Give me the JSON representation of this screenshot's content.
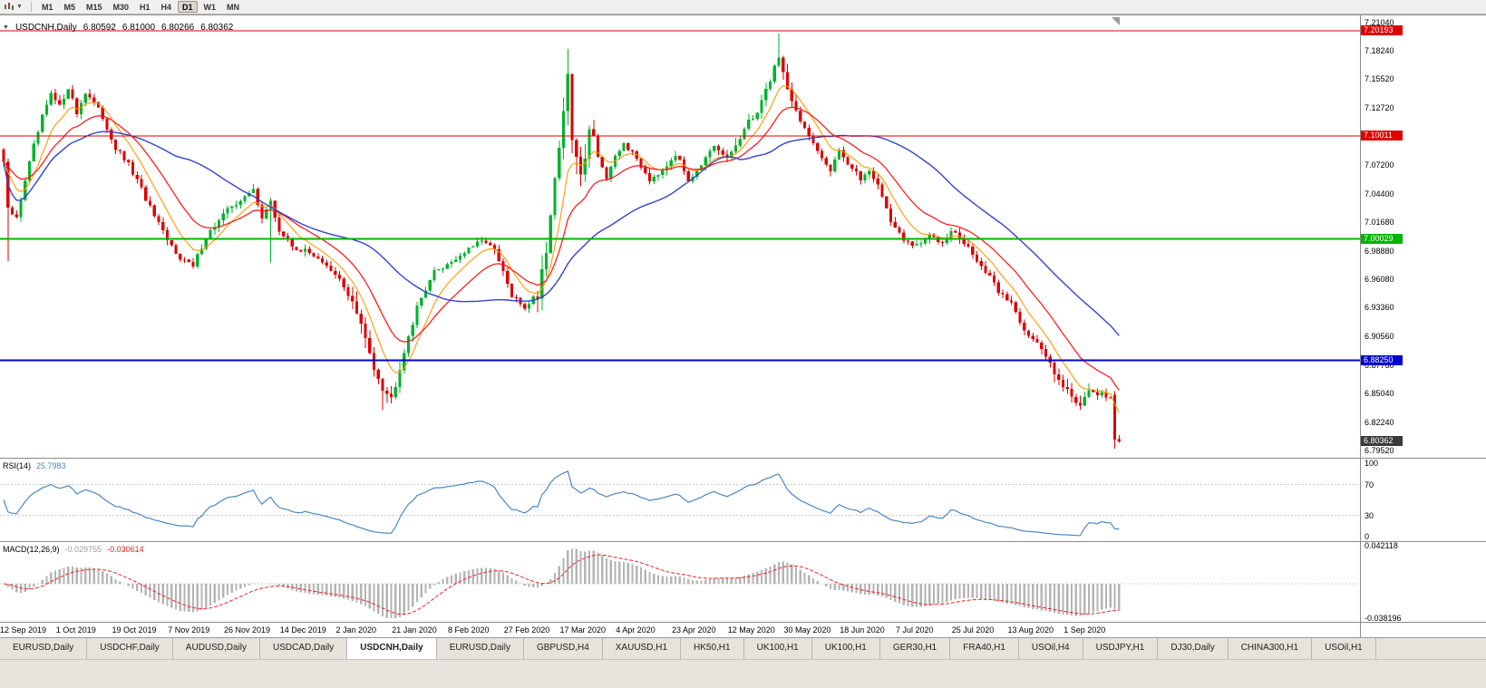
{
  "toolbar": {
    "timeframes": [
      "M1",
      "M5",
      "M15",
      "M30",
      "H1",
      "H4",
      "D1",
      "W1",
      "MN"
    ],
    "active_timeframe": "D1"
  },
  "chart": {
    "title": "USDCNH,Daily",
    "ohlc": {
      "open": "6.80592",
      "high": "6.81000",
      "low": "6.80266",
      "close": "6.80362"
    },
    "axis_labels": [
      "7.21040",
      "7.18240",
      "7.15520",
      "7.12720",
      "7.07200",
      "7.04400",
      "7.01680",
      "6.98880",
      "6.96080",
      "6.93360",
      "6.90560",
      "6.87760",
      "6.85040",
      "6.82240",
      "6.79520"
    ],
    "levels": [
      {
        "label": "7.20193",
        "price": 7.20193,
        "color": "#dd0000",
        "line_width": 1
      },
      {
        "label": "7.10011",
        "price": 7.10011,
        "color": "#dd0000",
        "line_width": 1
      },
      {
        "label": "7.00029",
        "price": 7.00029,
        "color": "#00b400",
        "line_width": 2
      },
      {
        "label": "6.88250",
        "price": 6.8825,
        "color": "#0000cc",
        "line_width": 2
      }
    ],
    "current_price": {
      "label": "6.80362",
      "price": 6.80362,
      "color": "#3a3a3a"
    }
  },
  "rsi": {
    "label": "RSI(14)",
    "value": "25.7983",
    "axis": [
      "100",
      "70",
      "30",
      "0"
    ],
    "levels": [
      70,
      30
    ]
  },
  "macd": {
    "label": "MACD(12,26,9)",
    "value_main": "-0.029755",
    "value_signal": "-0.030614",
    "axis_max": "0.042118",
    "axis_min": "-0.038196"
  },
  "dates": [
    "12 Sep 2019",
    "1 Oct 2019",
    "19 Oct 2019",
    "7 Nov 2019",
    "26 Nov 2019",
    "14 Dec 2019",
    "2 Jan 2020",
    "21 Jan 2020",
    "8 Feb 2020",
    "27 Feb 2020",
    "17 Mar 2020",
    "4 Apr 2020",
    "23 Apr 2020",
    "12 May 2020",
    "30 May 2020",
    "18 Jun 2020",
    "7 Jul 2020",
    "25 Jul 2020",
    "13 Aug 2020",
    "1 Sep 2020"
  ],
  "tabs": {
    "items": [
      "EURUSD,Daily",
      "USDCHF,Daily",
      "AUDUSD,Daily",
      "USDCAD,Daily",
      "USDCNH,Daily",
      "EURUSD,Daily",
      "GBPUSD,H4",
      "XAUUSD,H1",
      "HK50,H1",
      "UK100,H1",
      "UK100,H1",
      "GER30,H1",
      "FRA40,H1",
      "USOil,H4",
      "USDJPY,H1",
      "DJ30,Daily",
      "CHINA300,H1",
      "USOil,H1"
    ],
    "active_index": 4
  },
  "chart_data": {
    "type": "candlestick",
    "symbol": "USDCNH",
    "timeframe": "Daily",
    "candles": 260,
    "price_range": [
      6.788,
      7.217
    ],
    "base_volatility": 0.0062,
    "anchors": [
      [
        0,
        7.075
      ],
      [
        1,
        7.028
      ],
      [
        3,
        7.02
      ],
      [
        5,
        7.058
      ],
      [
        7,
        7.09
      ],
      [
        9,
        7.118
      ],
      [
        11,
        7.14
      ],
      [
        13,
        7.128
      ],
      [
        15,
        7.148
      ],
      [
        17,
        7.122
      ],
      [
        19,
        7.143
      ],
      [
        21,
        7.132
      ],
      [
        23,
        7.118
      ],
      [
        26,
        7.088
      ],
      [
        29,
        7.072
      ],
      [
        32,
        7.048
      ],
      [
        35,
        7.022
      ],
      [
        38,
        6.998
      ],
      [
        41,
        6.983
      ],
      [
        44,
        6.973
      ],
      [
        47,
        7.003
      ],
      [
        50,
        7.018
      ],
      [
        53,
        7.033
      ],
      [
        56,
        7.04
      ],
      [
        58,
        7.048
      ],
      [
        60,
        7.022
      ],
      [
        62,
        7.035
      ],
      [
        64,
        7.008
      ],
      [
        67,
        6.993
      ],
      [
        70,
        6.988
      ],
      [
        73,
        6.983
      ],
      [
        76,
        6.968
      ],
      [
        78,
        6.96
      ],
      [
        80,
        6.948
      ],
      [
        82,
        6.928
      ],
      [
        84,
        6.902
      ],
      [
        86,
        6.878
      ],
      [
        88,
        6.858
      ],
      [
        90,
        6.845
      ],
      [
        92,
        6.878
      ],
      [
        94,
        6.908
      ],
      [
        96,
        6.933
      ],
      [
        98,
        6.953
      ],
      [
        100,
        6.968
      ],
      [
        103,
        6.976
      ],
      [
        106,
        6.984
      ],
      [
        109,
        6.993
      ],
      [
        112,
        6.999
      ],
      [
        114,
        6.988
      ],
      [
        116,
        6.968
      ],
      [
        118,
        6.944
      ],
      [
        121,
        6.934
      ],
      [
        124,
        6.948
      ],
      [
        126,
        6.993
      ],
      [
        128,
        7.058
      ],
      [
        130,
        7.128
      ],
      [
        131,
        7.152
      ],
      [
        132,
        7.098
      ],
      [
        134,
        7.058
      ],
      [
        136,
        7.112
      ],
      [
        138,
        7.082
      ],
      [
        140,
        7.058
      ],
      [
        142,
        7.078
      ],
      [
        144,
        7.093
      ],
      [
        147,
        7.078
      ],
      [
        150,
        7.058
      ],
      [
        153,
        7.068
      ],
      [
        156,
        7.083
      ],
      [
        159,
        7.058
      ],
      [
        162,
        7.073
      ],
      [
        165,
        7.088
      ],
      [
        168,
        7.078
      ],
      [
        171,
        7.098
      ],
      [
        174,
        7.118
      ],
      [
        177,
        7.143
      ],
      [
        179,
        7.168
      ],
      [
        180,
        7.176
      ],
      [
        182,
        7.148
      ],
      [
        184,
        7.123
      ],
      [
        186,
        7.108
      ],
      [
        189,
        7.083
      ],
      [
        192,
        7.068
      ],
      [
        194,
        7.088
      ],
      [
        196,
        7.073
      ],
      [
        199,
        7.058
      ],
      [
        201,
        7.068
      ],
      [
        203,
        7.053
      ],
      [
        206,
        7.018
      ],
      [
        209,
        6.998
      ],
      [
        212,
        6.993
      ],
      [
        215,
        7.003
      ],
      [
        218,
        6.998
      ],
      [
        220,
        7.01
      ],
      [
        222,
        7.0
      ],
      [
        225,
        6.986
      ],
      [
        228,
        6.968
      ],
      [
        231,
        6.95
      ],
      [
        234,
        6.938
      ],
      [
        237,
        6.913
      ],
      [
        240,
        6.898
      ],
      [
        243,
        6.88
      ],
      [
        246,
        6.86
      ],
      [
        248,
        6.846
      ],
      [
        250,
        6.841
      ],
      [
        252,
        6.857
      ],
      [
        254,
        6.845
      ],
      [
        256,
        6.849
      ],
      [
        257,
        6.845
      ],
      [
        258,
        6.806
      ],
      [
        259,
        6.80362
      ]
    ],
    "volatility_zones": [
      [
        128,
        133,
        0.022
      ],
      [
        124,
        137,
        0.018
      ],
      [
        78,
        95,
        0.012
      ],
      [
        170,
        184,
        0.01
      ],
      [
        244,
        257,
        0.01
      ]
    ],
    "wick_events": [
      [
        1,
        -0.05
      ],
      [
        62,
        -0.048
      ],
      [
        88,
        -0.01
      ],
      [
        131,
        0.008
      ],
      [
        180,
        0.018
      ]
    ],
    "last_candles": [
      [
        6.849,
        6.8525,
        6.7968,
        6.8055
      ],
      [
        6.80592,
        6.81,
        6.80266,
        6.80362
      ]
    ],
    "ma": [
      {
        "period": 8,
        "color": "#ff9900"
      },
      {
        "period": 18,
        "color": "#ff1111"
      },
      {
        "period": 40,
        "color": "#3344cc"
      }
    ],
    "colors": {
      "bull": "#00b22c",
      "bear": "#dd0000",
      "rsi": "#4a86c8",
      "macd_hist": "#b4b4b4",
      "macd_signal": "#ee2222"
    }
  }
}
